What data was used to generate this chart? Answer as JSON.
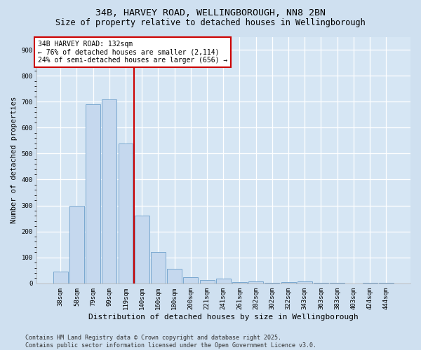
{
  "title1": "34B, HARVEY ROAD, WELLINGBOROUGH, NN8 2BN",
  "title2": "Size of property relative to detached houses in Wellingborough",
  "xlabel": "Distribution of detached houses by size in Wellingborough",
  "ylabel": "Number of detached properties",
  "categories": [
    "38sqm",
    "58sqm",
    "79sqm",
    "99sqm",
    "119sqm",
    "140sqm",
    "160sqm",
    "180sqm",
    "200sqm",
    "221sqm",
    "241sqm",
    "261sqm",
    "282sqm",
    "302sqm",
    "322sqm",
    "343sqm",
    "363sqm",
    "383sqm",
    "403sqm",
    "424sqm",
    "444sqm"
  ],
  "values": [
    45,
    300,
    690,
    710,
    540,
    260,
    120,
    55,
    25,
    12,
    18,
    5,
    8,
    3,
    6,
    8,
    3,
    3,
    0,
    3,
    1
  ],
  "bar_color": "#c5d8ee",
  "bar_edge_color": "#7aa8d0",
  "vline_color": "#cc0000",
  "vline_x_index": 4,
  "annotation_text": "34B HARVEY ROAD: 132sqm\n← 76% of detached houses are smaller (2,114)\n24% of semi-detached houses are larger (656) →",
  "annotation_box_color": "#cc0000",
  "background_color": "#cfe0f0",
  "plot_bg_color": "#d6e6f4",
  "footer": "Contains HM Land Registry data © Crown copyright and database right 2025.\nContains public sector information licensed under the Open Government Licence v3.0.",
  "ylim": [
    0,
    950
  ],
  "yticks": [
    0,
    100,
    200,
    300,
    400,
    500,
    600,
    700,
    800,
    900
  ],
  "title1_fontsize": 9.5,
  "title2_fontsize": 8.5,
  "xlabel_fontsize": 8,
  "ylabel_fontsize": 7.5,
  "tick_fontsize": 6.5,
  "annotation_fontsize": 7,
  "footer_fontsize": 6
}
